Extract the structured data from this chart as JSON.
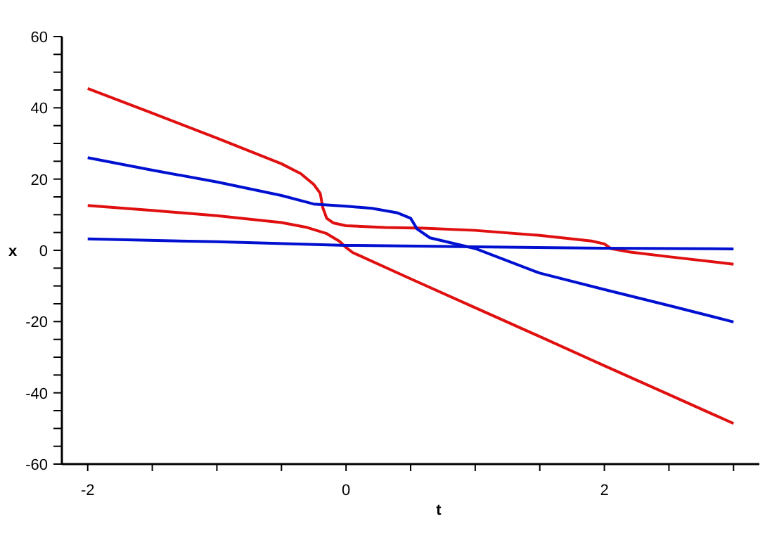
{
  "chart_data": {
    "type": "line",
    "xlabel": "t",
    "ylabel": "x",
    "xlim": [
      -2.2,
      3.2
    ],
    "ylim": [
      -60,
      60
    ],
    "xticks": [
      -2,
      {
        "value": -1.5,
        "label": null
      },
      {
        "value": -1,
        "label": null
      },
      {
        "value": -0.5,
        "label": null
      },
      0,
      {
        "value": 0.5,
        "label": null
      },
      {
        "value": 1,
        "label": null
      },
      {
        "value": 1.5,
        "label": null
      },
      2,
      {
        "value": 2.5,
        "label": null
      },
      {
        "value": 3,
        "label": null
      }
    ],
    "yticks": [
      -60,
      {
        "value": -55,
        "label": null
      },
      {
        "value": -50,
        "label": null
      },
      {
        "value": -45,
        "label": null
      },
      -40,
      {
        "value": -35,
        "label": null
      },
      {
        "value": -30,
        "label": null
      },
      {
        "value": -25,
        "label": null
      },
      -20,
      {
        "value": -15,
        "label": null
      },
      {
        "value": -10,
        "label": null
      },
      {
        "value": -5,
        "label": null
      },
      0,
      {
        "value": 5,
        "label": null
      },
      {
        "value": 10,
        "label": null
      },
      {
        "value": 15,
        "label": null
      },
      20,
      {
        "value": 25,
        "label": null
      },
      {
        "value": 30,
        "label": null
      },
      {
        "value": 35,
        "label": null
      },
      40,
      {
        "value": 45,
        "label": null
      },
      {
        "value": 50,
        "label": null
      },
      {
        "value": 55,
        "label": null
      },
      60
    ],
    "grid": false,
    "marker": "none",
    "line_style": "solid",
    "series": [
      {
        "color": "#e01010",
        "x": [
          -2,
          -1.5,
          -1,
          -0.5,
          -0.35,
          -0.25,
          -0.2,
          -0.18,
          -0.15,
          -0.1,
          0,
          0.3,
          0.6,
          1,
          1.5,
          1.9,
          2,
          2.05,
          2.2,
          2.5,
          3
        ],
        "values": [
          45.4,
          38.5,
          31.5,
          24.3,
          21.5,
          18.5,
          16,
          12,
          9,
          7.7,
          6.9,
          6.4,
          6.2,
          5.6,
          4.2,
          2.6,
          1.8,
          0.5,
          -0.5,
          -1.8,
          -3.9
        ]
      },
      {
        "color": "#e01010",
        "x": [
          -2,
          -1.5,
          -1,
          -0.5,
          -0.3,
          -0.15,
          -0.05,
          0,
          0.05,
          0.5,
          1,
          1.5,
          2,
          2.5,
          3
        ],
        "values": [
          12.6,
          11.2,
          9.7,
          7.8,
          6.4,
          4.7,
          2.5,
          0.8,
          -0.6,
          -8,
          -16.1,
          -24.2,
          -32.4,
          -40.5,
          -48.6
        ]
      },
      {
        "color": "#0010d0",
        "x": [
          -2,
          -1.5,
          -1,
          -0.5,
          -0.25,
          0,
          0.2,
          0.4,
          0.5,
          0.55,
          0.65,
          1,
          1.5,
          2,
          2.5,
          3
        ],
        "values": [
          26,
          22.5,
          19.2,
          15.4,
          13,
          12.4,
          11.8,
          10.5,
          9,
          6,
          3.5,
          0.5,
          -6.4,
          -11,
          -15.5,
          -20.1
        ]
      },
      {
        "color": "#0010d0",
        "x": [
          -2,
          -1,
          0,
          1,
          2,
          3
        ],
        "values": [
          3.2,
          2.4,
          1.4,
          1,
          0.6,
          0.4
        ]
      }
    ]
  }
}
